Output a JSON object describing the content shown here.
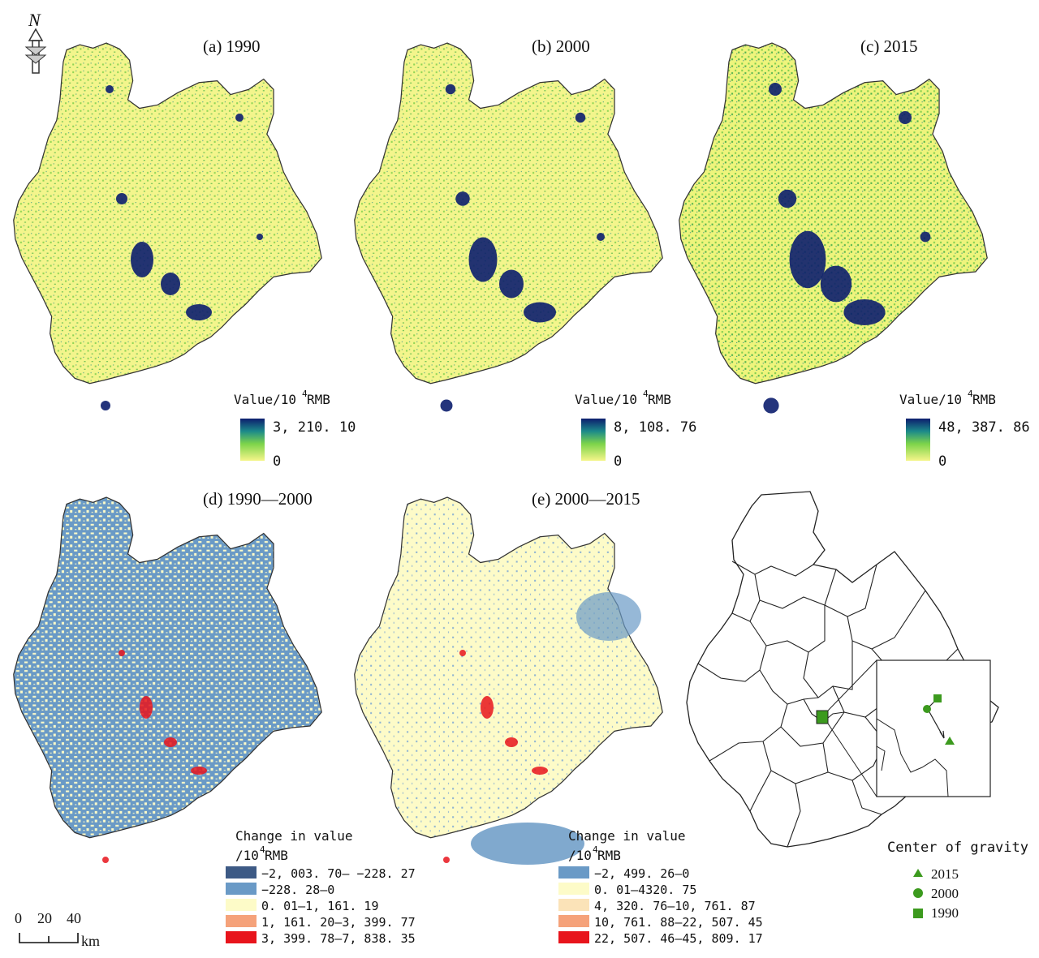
{
  "figure": {
    "north_label": "N",
    "panels": [
      {
        "id": "a",
        "title": "(a) 1990",
        "legend_title": "Value/10",
        "legend_sup": "4",
        "legend_unit": " RMB",
        "max": "3, 210. 10",
        "min": "0"
      },
      {
        "id": "b",
        "title": "(b) 2000",
        "legend_title": "Value/10",
        "legend_sup": "4",
        "legend_unit": " RMB",
        "max": "8, 108. 76",
        "min": "0"
      },
      {
        "id": "c",
        "title": "(c) 2015",
        "legend_title": "Value/10",
        "legend_sup": "4",
        "legend_unit": " RMB",
        "max": "48, 387. 86",
        "min": "0"
      }
    ],
    "change_panels": [
      {
        "id": "d",
        "title": "(d) 1990—2000",
        "legend_line1": "Change in value",
        "legend_line2a": "/10",
        "legend_line2sup": "4",
        "legend_line2b": " RMB",
        "classes": [
          {
            "label": "−2, 003. 70— −228. 27",
            "color": "#3d5a85"
          },
          {
            "label": "−228. 28—0",
            "color": "#6a9ac6"
          },
          {
            "label": "0. 01—1, 161. 19",
            "color": "#fdfbc8"
          },
          {
            "label": "1, 161. 20—3, 399. 77",
            "color": "#f5a27a"
          },
          {
            "label": "3, 399. 78—7, 838. 35",
            "color": "#e8141c"
          }
        ]
      },
      {
        "id": "e",
        "title": "(e) 2000—2015",
        "legend_line1": "Change in value",
        "legend_line2a": "/10",
        "legend_line2sup": "4",
        "legend_line2b": " RMB",
        "classes": [
          {
            "label": "−2, 499. 26—0",
            "color": "#6a9ac6"
          },
          {
            "label": "0. 01—4320. 75",
            "color": "#fdfbc8"
          },
          {
            "label": "4, 320. 76—10, 761. 87",
            "color": "#fbe3b8"
          },
          {
            "label": "10, 761. 88—22, 507. 45",
            "color": "#f5a27a"
          },
          {
            "label": "22, 507. 46—45, 809. 17",
            "color": "#e8141c"
          }
        ]
      }
    ],
    "gravity": {
      "legend_title": "Center of gravity",
      "items": [
        {
          "label": "2015",
          "shape": "triangle"
        },
        {
          "label": "2000",
          "shape": "circle"
        },
        {
          "label": "1990",
          "shape": "square"
        }
      ],
      "marker_color": "#3c9a1e"
    },
    "scalebar": {
      "ticks": [
        "0",
        "20",
        "40"
      ],
      "unit": "km"
    },
    "colors": {
      "value_low": "#f5f58a",
      "value_mid": "#7dd44a",
      "value_teal": "#1c8a8a",
      "value_high": "#0c1e6e",
      "outline": "#222222"
    }
  }
}
